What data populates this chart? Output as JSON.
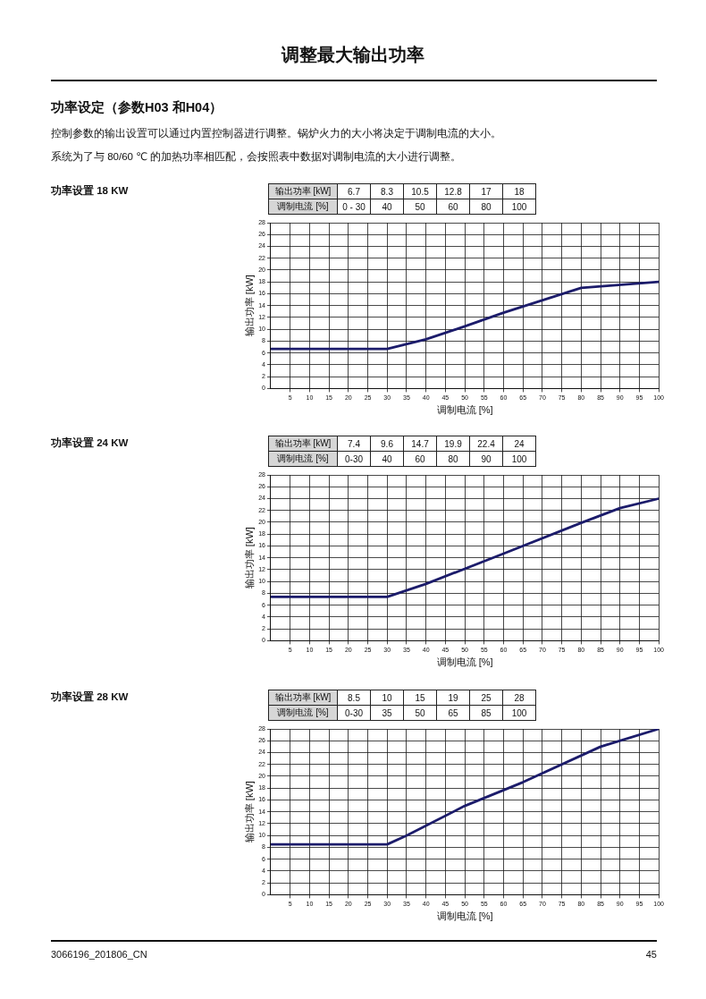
{
  "chart_data": [
    {
      "type": "line",
      "xlabel": "调制电流 [%]",
      "ylabel": "输出功率 [kW]",
      "x": [
        0,
        30,
        40,
        50,
        60,
        80,
        100
      ],
      "values": [
        6.7,
        6.7,
        8.3,
        10.5,
        12.8,
        17,
        18
      ],
      "color": "#1c1c6b",
      "xlim": [
        0,
        100
      ],
      "xticks": [
        5,
        10,
        15,
        20,
        25,
        30,
        35,
        40,
        45,
        50,
        55,
        60,
        65,
        70,
        75,
        80,
        85,
        90,
        95,
        100
      ],
      "ylim": [
        0,
        28
      ],
      "yticks": [
        0,
        2,
        4,
        6,
        8,
        10,
        12,
        14,
        16,
        18,
        20,
        22,
        24,
        26,
        28
      ],
      "grid": true,
      "marker": "none",
      "line_style": "solid",
      "annotations": [
        "功率设置 18 KW",
        "输出功率 [kW]",
        "6.7",
        "8.3",
        "10.5",
        "12.8",
        "17",
        "18",
        "调制电流 [%]",
        "0 - 30",
        "40",
        "50",
        "60",
        "80",
        "100",
        "调整最大输出功率",
        "功率设定（参数H03 和H04）",
        "控制参数的输出设置可以通过内置控制器进行调整。锅炉火力的大小将决定于调制电流的大小。",
        "系统为了与 80/60 ℃ 的加热功率相匹配，会按照表中数据对调制电流的大小进行调整。"
      ]
    },
    {
      "type": "line",
      "xlabel": "调制电流 [%]",
      "ylabel": "输出功率 [kW]",
      "x": [
        0,
        30,
        40,
        60,
        80,
        90,
        100
      ],
      "values": [
        7.4,
        7.4,
        9.6,
        14.7,
        19.9,
        22.4,
        24
      ],
      "color": "#1c1c6b",
      "xlim": [
        0,
        100
      ],
      "xticks": [
        5,
        10,
        15,
        20,
        25,
        30,
        35,
        40,
        45,
        50,
        55,
        60,
        65,
        70,
        75,
        80,
        85,
        90,
        95,
        100
      ],
      "ylim": [
        0,
        28
      ],
      "yticks": [
        0,
        2,
        4,
        6,
        8,
        10,
        12,
        14,
        16,
        18,
        20,
        22,
        24,
        26,
        28
      ],
      "grid": true,
      "marker": "none",
      "line_style": "solid",
      "annotations": [
        "功率设置 24 KW",
        "输出功率 [kW]",
        "7.4",
        "9.6",
        "14.7",
        "19.9",
        "22.4",
        "24",
        "调制电流 [%]",
        "0-30",
        "40",
        "60",
        "80",
        "90",
        "100"
      ]
    },
    {
      "type": "line",
      "xlabel": "调制电流 [%]",
      "ylabel": "输出功率 [kW]",
      "x": [
        0,
        30,
        35,
        50,
        65,
        85,
        100
      ],
      "values": [
        8.5,
        8.5,
        10,
        15,
        19,
        25,
        28
      ],
      "color": "#1c1c6b",
      "xlim": [
        0,
        100
      ],
      "xticks": [
        5,
        10,
        15,
        20,
        25,
        30,
        35,
        40,
        45,
        50,
        55,
        60,
        65,
        70,
        75,
        80,
        85,
        90,
        95,
        100
      ],
      "ylim": [
        0,
        28
      ],
      "yticks": [
        0,
        2,
        4,
        6,
        8,
        10,
        12,
        14,
        16,
        18,
        20,
        22,
        24,
        26,
        28
      ],
      "grid": true,
      "marker": "none",
      "line_style": "solid",
      "annotations": [
        "功率设置 28 KW",
        "输出功率 [kW]",
        "8.5",
        "10",
        "15",
        "19",
        "25",
        "28",
        "调制电流 [%]",
        "0-30",
        "35",
        "50",
        "65",
        "85",
        "100",
        "3066196_201806_CN",
        "45"
      ]
    }
  ]
}
